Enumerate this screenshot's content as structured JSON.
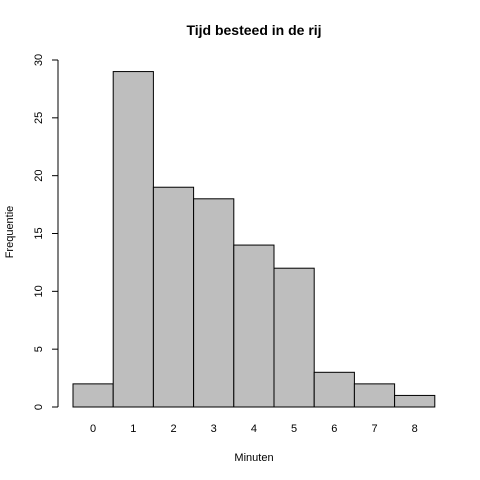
{
  "chart_data": {
    "type": "bar",
    "title": "Tijd besteed in de rij",
    "xlabel": "Minuten",
    "ylabel": "Frequentie",
    "categories": [
      "0",
      "1",
      "2",
      "3",
      "4",
      "5",
      "6",
      "7",
      "8"
    ],
    "values": [
      2,
      29,
      19,
      18,
      14,
      12,
      3,
      2,
      1
    ],
    "ylim": [
      0,
      30
    ],
    "yticks": [
      0,
      5,
      10,
      15,
      20,
      25,
      30
    ],
    "grid": false,
    "bar_color": "#bebebe",
    "border_color": "#000000"
  }
}
